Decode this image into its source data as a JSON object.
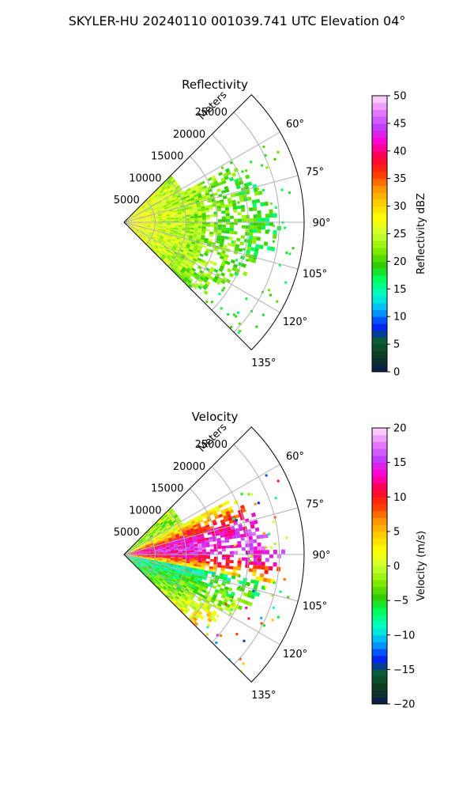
{
  "figure": {
    "suptitle": "SKYLER-HU  20240110  001039.741 UTC Elevation 04°"
  },
  "chart_data": [
    {
      "type": "heatmap",
      "title": "Reflectivity",
      "projection": "polar sector",
      "range_axis_label": "Meters",
      "range_ticks": [
        5000,
        10000,
        15000,
        20000,
        25000
      ],
      "range_tick_labels": [
        "5000",
        "10000",
        "15000",
        "20000",
        "25000"
      ],
      "range_max": 29000,
      "azimuth_ticks": [
        60,
        75,
        90,
        105,
        120,
        135
      ],
      "azimuth_tick_labels": [
        "60°",
        "75°",
        "90°",
        "105°",
        "120°",
        "135°"
      ],
      "azimuth_range": [
        45,
        135
      ],
      "grid": true,
      "colorbar": {
        "label": "Reflectivity dBZ",
        "range": [
          0,
          50
        ],
        "ticks": [
          0,
          5,
          10,
          15,
          20,
          25,
          30,
          35,
          40,
          45,
          50
        ],
        "tick_labels": [
          "0",
          "5",
          "10",
          "15",
          "20",
          "25",
          "30",
          "35",
          "40",
          "45",
          "50"
        ],
        "colors": [
          "#0b1a4e",
          "#0d3a1e",
          "#0a5a34",
          "#0022ff",
          "#00aaff",
          "#00ffd0",
          "#00ff60",
          "#33cc00",
          "#88ee00",
          "#ccff33",
          "#ffff00",
          "#ffd000",
          "#ff9000",
          "#ff3000",
          "#ff0040",
          "#ff00d0",
          "#c040ff",
          "#e880ff",
          "#ffe0ff"
        ]
      },
      "field_description_values": {
        "near_range_dBZ": 28,
        "mid_range_dBZ": 20,
        "far_range_dBZ": 17
      }
    },
    {
      "type": "heatmap",
      "title": "Velocity",
      "projection": "polar sector",
      "range_axis_label": "Meters",
      "range_ticks": [
        5000,
        10000,
        15000,
        20000,
        25000
      ],
      "range_tick_labels": [
        "5000",
        "10000",
        "15000",
        "20000",
        "25000"
      ],
      "range_max": 29000,
      "azimuth_ticks": [
        60,
        75,
        90,
        105,
        120,
        135
      ],
      "azimuth_tick_labels": [
        "60°",
        "75°",
        "90°",
        "105°",
        "120°",
        "135°"
      ],
      "azimuth_range": [
        45,
        135
      ],
      "grid": true,
      "colorbar": {
        "label": "Velocity (m/s)",
        "range": [
          -20,
          20
        ],
        "ticks": [
          -20,
          -15,
          -10,
          -5,
          0,
          5,
          10,
          15,
          20
        ],
        "tick_labels": [
          "−20",
          "−15",
          "−10",
          "−5",
          "0",
          "5",
          "10",
          "15",
          "20"
        ],
        "colors": [
          "#0b1a4e",
          "#0d3a1e",
          "#0a5a34",
          "#0022ff",
          "#00aaff",
          "#00ffd0",
          "#00ff60",
          "#33cc00",
          "#88ee00",
          "#ccff33",
          "#ffff00",
          "#ffd000",
          "#ff9000",
          "#ff3000",
          "#ff0040",
          "#ff00d0",
          "#c040ff",
          "#e880ff",
          "#ffe0ff"
        ]
      },
      "field_description_values": {
        "north_band_m_s": 12,
        "center_band_m_s": 3,
        "south_band_m_s": -8
      }
    }
  ]
}
